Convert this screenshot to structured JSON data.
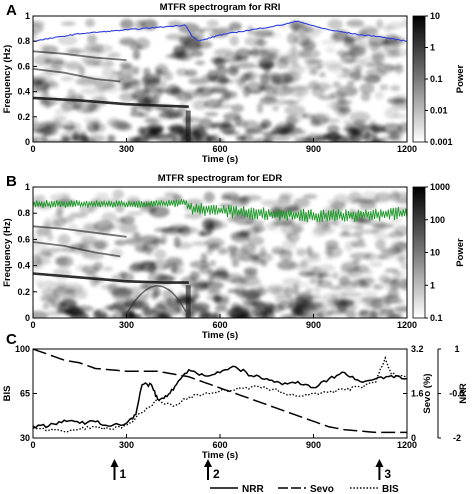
{
  "chart_data": [
    {
      "type": "heatmap",
      "panel_label": "A",
      "title": "MTFR spectrogram for RRI",
      "xlabel": "Time (s)",
      "ylabel": "Frequency (Hz)",
      "xlim": [
        0,
        1200
      ],
      "ylim": [
        0,
        1.0
      ],
      "x_ticks": [
        "0",
        "300",
        "600",
        "900",
        "1200"
      ],
      "y_ticks": [
        "0",
        "0.2",
        "0.4",
        "0.6",
        "0.8",
        "1"
      ],
      "colorbar": {
        "label": "Power",
        "scale": "log",
        "range": [
          0.001,
          10
        ],
        "ticks": [
          "10",
          "1",
          "0.1",
          "0.01",
          "0.001"
        ]
      },
      "overlay_color": "#2f3fe0",
      "overlay_track": {
        "t": [
          0,
          50,
          100,
          150,
          200,
          250,
          300,
          350,
          400,
          450,
          490,
          510,
          530,
          560,
          600,
          650,
          700,
          750,
          800,
          850,
          900,
          950,
          1000,
          1050,
          1100,
          1150,
          1200
        ],
        "f": [
          0.8,
          0.82,
          0.84,
          0.86,
          0.87,
          0.88,
          0.89,
          0.9,
          0.91,
          0.92,
          0.93,
          0.84,
          0.8,
          0.82,
          0.85,
          0.87,
          0.89,
          0.91,
          0.93,
          0.96,
          0.92,
          0.89,
          0.87,
          0.85,
          0.84,
          0.82,
          0.8
        ]
      },
      "bands": [
        {
          "t": [
            0,
            150,
            300,
            400,
            500
          ],
          "f": [
            0.35,
            0.33,
            0.3,
            0.29,
            0.28
          ]
        },
        {
          "t": [
            0,
            100,
            200,
            280
          ],
          "f": [
            0.58,
            0.55,
            0.5,
            0.48
          ]
        },
        {
          "t": [
            0,
            100,
            200,
            300
          ],
          "f": [
            0.72,
            0.7,
            0.67,
            0.65
          ]
        }
      ]
    },
    {
      "type": "heatmap",
      "panel_label": "B",
      "title": "MTFR spectrogram for EDR",
      "xlabel": "Time (s)",
      "ylabel": "Frequency (Hz)",
      "xlim": [
        0,
        1200
      ],
      "ylim": [
        0,
        1.0
      ],
      "x_ticks": [
        "0",
        "300",
        "600",
        "900",
        "1200"
      ],
      "y_ticks": [
        "0",
        "0.2",
        "0.4",
        "0.6",
        "0.8",
        "1"
      ],
      "colorbar": {
        "label": "Power",
        "scale": "log",
        "range": [
          0.1,
          1000
        ],
        "ticks": [
          "1000",
          "100",
          "10",
          "1",
          "0.1"
        ]
      },
      "overlay_color": "#1f9a2a",
      "overlay_track": {
        "t": [
          0,
          100,
          200,
          300,
          400,
          490,
          510,
          600,
          700,
          800,
          900,
          1000,
          1100,
          1200
        ],
        "f": [
          0.87,
          0.87,
          0.87,
          0.87,
          0.87,
          0.88,
          0.83,
          0.82,
          0.8,
          0.79,
          0.78,
          0.78,
          0.79,
          0.8
        ]
      },
      "bands": [
        {
          "t": [
            0,
            150,
            300,
            420,
            500
          ],
          "f": [
            0.34,
            0.31,
            0.28,
            0.27,
            0.27
          ]
        },
        {
          "t": [
            0,
            100,
            200,
            280
          ],
          "f": [
            0.58,
            0.55,
            0.5,
            0.47
          ]
        },
        {
          "t": [
            0,
            100,
            200,
            300
          ],
          "f": [
            0.7,
            0.68,
            0.65,
            0.62
          ]
        }
      ]
    },
    {
      "type": "line",
      "panel_label": "C",
      "xlabel": "Time (s)",
      "xlim": [
        0,
        1200
      ],
      "x_ticks": [
        "0",
        "300",
        "600",
        "900",
        "1200"
      ],
      "axes": {
        "left": {
          "label": "BIS",
          "ylim": [
            30,
            100
          ],
          "ticks": [
            "100",
            "65",
            "30"
          ]
        },
        "right1": {
          "label": "Sevo (%)",
          "ylim": [
            0,
            3.2
          ],
          "ticks": [
            "3.2",
            "1.6",
            "0"
          ]
        },
        "right2": {
          "label": "NRR",
          "ylim": [
            -2,
            1
          ],
          "ticks": [
            "1",
            "-0.5",
            "-2"
          ]
        }
      },
      "series": [
        {
          "name": "NRR",
          "axis": "right2",
          "style": "solid",
          "x": [
            0,
            50,
            100,
            150,
            200,
            250,
            300,
            330,
            350,
            380,
            400,
            430,
            460,
            500,
            550,
            600,
            650,
            700,
            750,
            800,
            850,
            900,
            950,
            1000,
            1050,
            1100,
            1150,
            1200
          ],
          "y": [
            -1.6,
            -1.6,
            -1.4,
            -1.5,
            -1.45,
            -1.6,
            -1.5,
            -1.2,
            -0.2,
            -0.2,
            -0.7,
            -0.6,
            -0.2,
            0.3,
            0.1,
            0.2,
            0.4,
            0.1,
            0.0,
            -0.2,
            -0.1,
            -0.3,
            0.0,
            0.2,
            -0.1,
            0.0,
            0.1,
            0.0
          ]
        },
        {
          "name": "Sevo",
          "axis": "right1",
          "style": "dashed",
          "x": [
            0,
            50,
            100,
            150,
            200,
            300,
            400,
            450,
            500,
            550,
            600,
            650,
            700,
            750,
            800,
            850,
            900,
            950,
            1000,
            1100,
            1200
          ],
          "y": [
            3.2,
            3.0,
            2.8,
            2.7,
            2.5,
            2.4,
            2.4,
            2.3,
            2.2,
            2.0,
            1.8,
            1.6,
            1.4,
            1.2,
            1.0,
            0.8,
            0.6,
            0.4,
            0.3,
            0.2,
            0.2
          ]
        },
        {
          "name": "BIS",
          "axis": "left",
          "style": "dotted",
          "x": [
            0,
            50,
            100,
            150,
            200,
            250,
            300,
            350,
            400,
            450,
            500,
            550,
            600,
            650,
            700,
            750,
            800,
            850,
            900,
            950,
            1000,
            1050,
            1100,
            1130,
            1150,
            1200
          ],
          "y": [
            38,
            36,
            35,
            37,
            39,
            37,
            40,
            50,
            60,
            55,
            62,
            65,
            67,
            68,
            70,
            69,
            66,
            63,
            65,
            66,
            68,
            70,
            74,
            93,
            80,
            78
          ]
        }
      ],
      "events": [
        {
          "label": "1",
          "t": 300
        },
        {
          "label": "2",
          "t": 600
        },
        {
          "label": "3",
          "t": 1150
        }
      ],
      "legend": {
        "placement": "bottom",
        "entries": [
          "NRR",
          "Sevo",
          "BIS"
        ]
      }
    }
  ]
}
